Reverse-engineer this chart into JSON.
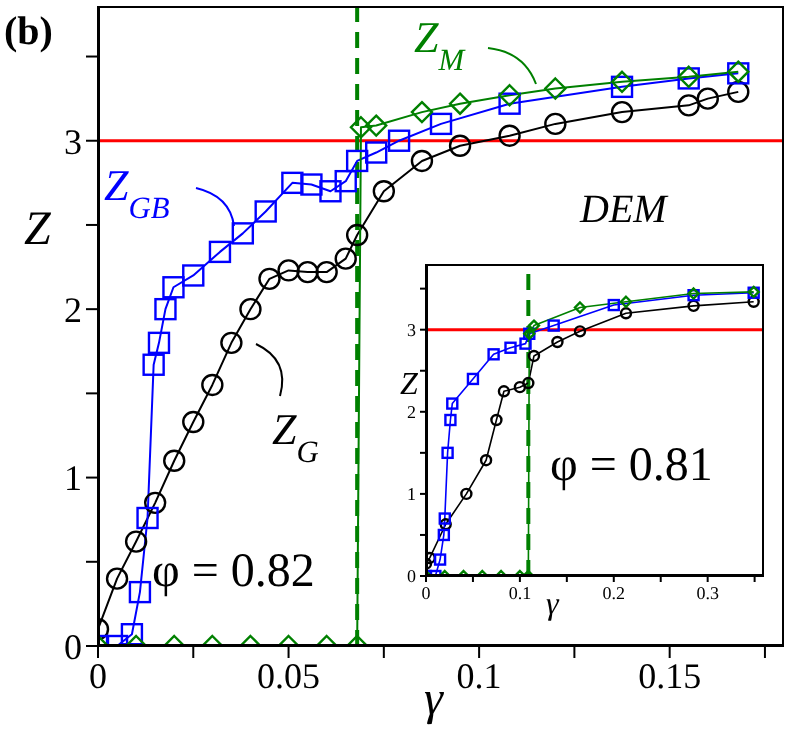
{
  "chart_data": [
    {
      "type": "line",
      "title": "(b)",
      "xlabel": "γ",
      "ylabel": "Z",
      "xlim": [
        0,
        0.18
      ],
      "ylim": [
        0,
        3.8
      ],
      "xticks": [
        0,
        {
          "value": 0.025,
          "label": null
        },
        0.05,
        {
          "value": 0.075,
          "label": null
        },
        0.1,
        {
          "value": 0.125,
          "label": null
        },
        0.15,
        {
          "value": 0.175,
          "label": null
        }
      ],
      "yticks": [
        0,
        {
          "value": 0.5,
          "label": null
        },
        1,
        {
          "value": 1.5,
          "label": null
        },
        2,
        {
          "value": 2.5,
          "label": null
        },
        3,
        {
          "value": 3.5,
          "label": null
        }
      ],
      "grid": false,
      "legend": "top left",
      "series": [
        {
          "name": "Z$_{G}$",
          "color": "#000000",
          "marker": "circle",
          "x": [
            0,
            0.005,
            0.01,
            0.015,
            0.02,
            0.025,
            0.03,
            0.035,
            0.04,
            0.045,
            0.05,
            0.055,
            0.06,
            0.065,
            0.068,
            0.075,
            0.085,
            0.095,
            0.108,
            0.12,
            0.1375,
            0.155,
            0.16,
            0.168
          ],
          "values": [
            0.1,
            0.4,
            0.62,
            0.85,
            1.1,
            1.33,
            1.55,
            1.8,
            2.0,
            2.18,
            2.23,
            2.22,
            2.22,
            2.3,
            2.44,
            2.7,
            2.88,
            2.97,
            3.03,
            3.1,
            3.17,
            3.21,
            3.25,
            3.29
          ]
        },
        {
          "name": "Z$_{GB}$",
          "color": "#0000ff",
          "marker": "square",
          "x": [
            0,
            0.005,
            0.0089,
            0.011,
            0.013,
            0.0146,
            0.016,
            0.0177,
            0.0198,
            0.025,
            0.032,
            0.038,
            0.044,
            0.051,
            0.056,
            0.061,
            0.065,
            0.068,
            0.073,
            0.079,
            0.09,
            0.108,
            0.1375,
            0.155,
            0.168
          ],
          "values": [
            0,
            0,
            0.07,
            0.32,
            0.76,
            1.67,
            1.8,
            2.0,
            2.13,
            2.2,
            2.34,
            2.45,
            2.58,
            2.75,
            2.74,
            2.7,
            2.76,
            2.88,
            2.93,
            3.0,
            3.1,
            3.22,
            3.32,
            3.37,
            3.4
          ]
        },
        {
          "name": "Z$_{M}$",
          "color": "#008000",
          "marker": "diamond",
          "x": [
            0,
            0.01,
            0.02,
            0.03,
            0.04,
            0.05,
            0.06,
            0.068,
            0.069,
            0.073,
            0.085,
            0.095,
            0.108,
            0.12,
            0.1375,
            0.155,
            0.168
          ],
          "values": [
            0,
            0,
            0,
            0,
            0,
            0,
            0,
            0,
            3.08,
            3.09,
            3.17,
            3.22,
            3.27,
            3.31,
            3.35,
            3.38,
            3.41
          ]
        }
      ],
      "ref_lines": [
        {
          "axis": "y",
          "value": 3,
          "color": "#ff0000",
          "line_style": "solid"
        },
        {
          "axis": "x",
          "value": 0.068,
          "color": "#008000",
          "line_style": "dashed"
        }
      ],
      "annotations": [
        "DEM",
        "φ = 0.82"
      ]
    },
    {
      "type": "line",
      "xlabel": "γ",
      "ylabel": "Z",
      "xlim": [
        0,
        0.36
      ],
      "ylim": [
        0,
        3.8
      ],
      "xticks": [
        0,
        {
          "value": 0.05,
          "label": null
        },
        0.1,
        {
          "value": 0.15,
          "label": null
        },
        0.2,
        {
          "value": 0.25,
          "label": null
        },
        0.3,
        {
          "value": 0.35,
          "label": null
        }
      ],
      "yticks": [
        0,
        {
          "value": 0.5,
          "label": null
        },
        1,
        {
          "value": 1.5,
          "label": null
        },
        2,
        {
          "value": 2.5,
          "label": null
        },
        3,
        {
          "value": 3.5,
          "label": null
        }
      ],
      "grid": false,
      "series": [
        {
          "color": "#000000",
          "marker": "circle",
          "x": [
            0,
            0.004,
            0.021,
            0.043,
            0.064,
            0.075,
            0.083,
            0.1,
            0.109,
            0.115,
            0.14,
            0.164,
            0.213,
            0.285,
            0.349
          ],
          "values": [
            0.15,
            0.22,
            0.63,
            1.0,
            1.41,
            1.9,
            2.25,
            2.3,
            2.35,
            2.68,
            2.85,
            2.98,
            3.2,
            3.29,
            3.34
          ]
        },
        {
          "color": "#0000ff",
          "marker": "square",
          "x": [
            0,
            0.01,
            0.015,
            0.019,
            0.02,
            0.023,
            0.026,
            0.028,
            0.05,
            0.072,
            0.09,
            0.106,
            0.11,
            0.136,
            0.2,
            0.285,
            0.349
          ],
          "values": [
            0,
            0,
            0.2,
            0.5,
            0.7,
            1.5,
            1.9,
            2.1,
            2.4,
            2.7,
            2.78,
            2.83,
            2.95,
            3.05,
            3.3,
            3.42,
            3.45
          ]
        },
        {
          "color": "#008000",
          "marker": "diamond",
          "x": [
            0,
            0.02,
            0.04,
            0.06,
            0.08,
            0.1,
            0.109,
            0.11,
            0.115,
            0.164,
            0.213,
            0.285,
            0.349
          ],
          "values": [
            0,
            0,
            0,
            0,
            0,
            0,
            0,
            2.95,
            3.05,
            3.27,
            3.34,
            3.44,
            3.46
          ]
        }
      ],
      "ref_lines": [
        {
          "axis": "y",
          "value": 3,
          "color": "#ff0000",
          "line_style": "solid"
        },
        {
          "axis": "x",
          "value": 0.109,
          "color": "#008000",
          "line_style": "dashed"
        }
      ],
      "annotations": [
        "φ = 0.81"
      ]
    }
  ]
}
